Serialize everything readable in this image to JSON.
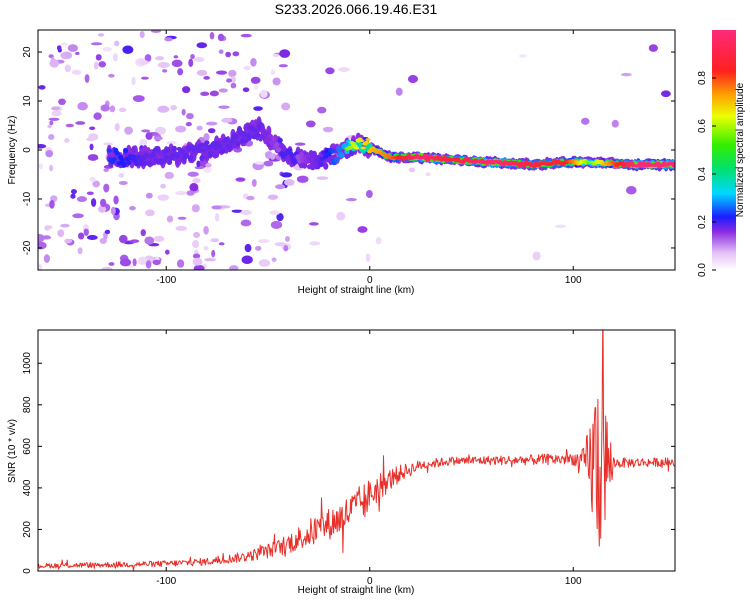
{
  "title": "S233.2026.066.19.46.E31",
  "chart_data": [
    {
      "type": "heatmap",
      "xlabel": "Height of straight line (km)",
      "ylabel": "Frequency (Hz)",
      "xlim": [
        -163,
        150
      ],
      "ylim": [
        -24.5,
        24.5
      ],
      "xticks": [
        -100,
        0,
        100
      ],
      "xtick_labels": [
        "-100",
        "0",
        "100"
      ],
      "yticks": [
        -20,
        -10,
        0,
        10,
        20
      ],
      "ytick_labels": [
        "-20",
        "-10",
        "0",
        "10",
        "20"
      ],
      "colorbar": {
        "label": "Normalized spectral amplitude",
        "range": [
          0,
          1
        ],
        "ticks": [
          0,
          0.2,
          0.4,
          0.6,
          0.8
        ],
        "tick_labels": [
          "0.0",
          "0.2",
          "0.4",
          "0.6",
          "0.8"
        ]
      },
      "ridge": [
        {
          "x": -130,
          "y": -1.5,
          "a": 0.4
        },
        {
          "x": -110,
          "y": -1.5,
          "a": 0.3
        },
        {
          "x": -90,
          "y": -1.0,
          "a": 0.3
        },
        {
          "x": -75,
          "y": 0.5,
          "a": 0.3
        },
        {
          "x": -55,
          "y": 4.5,
          "a": 0.3
        },
        {
          "x": -40,
          "y": -1.0,
          "a": 0.2
        },
        {
          "x": -25,
          "y": -2.5,
          "a": 0.3
        },
        {
          "x": -5,
          "y": 1.5,
          "a": 0.6
        },
        {
          "x": 10,
          "y": -1.5,
          "a": 0.7
        },
        {
          "x": 25,
          "y": -1.5,
          "a": 0.9
        },
        {
          "x": 40,
          "y": -2.0,
          "a": 0.8
        },
        {
          "x": 60,
          "y": -2.5,
          "a": 0.9
        },
        {
          "x": 80,
          "y": -3.0,
          "a": 0.8
        },
        {
          "x": 95,
          "y": -2.5,
          "a": 0.8
        },
        {
          "x": 108,
          "y": -2.5,
          "a": 0.5
        },
        {
          "x": 130,
          "y": -3.0,
          "a": 0.9
        },
        {
          "x": 150,
          "y": -3.0,
          "a": 0.9
        }
      ]
    },
    {
      "type": "line",
      "xlabel": "Height of straight line (km)",
      "ylabel": "SNR (10 * v/v)",
      "xlim": [
        -163,
        150
      ],
      "ylim": [
        0,
        1160
      ],
      "xticks": [
        -100,
        0,
        100
      ],
      "xtick_labels": [
        "-100",
        "0",
        "100"
      ],
      "yticks": [
        0,
        200,
        400,
        600,
        800,
        1000
      ],
      "ytick_labels": [
        "0",
        "200",
        "400",
        "600",
        "800",
        "1000"
      ],
      "color": "#e8302a",
      "envelope": [
        {
          "x": -163,
          "y": 25,
          "n": 12
        },
        {
          "x": -100,
          "y": 35,
          "n": 15
        },
        {
          "x": -80,
          "y": 45,
          "n": 18
        },
        {
          "x": -60,
          "y": 70,
          "n": 25
        },
        {
          "x": -45,
          "y": 110,
          "n": 40
        },
        {
          "x": -30,
          "y": 180,
          "n": 70
        },
        {
          "x": -15,
          "y": 250,
          "n": 80
        },
        {
          "x": -5,
          "y": 320,
          "n": 90
        },
        {
          "x": 5,
          "y": 410,
          "n": 70
        },
        {
          "x": 15,
          "y": 470,
          "n": 40
        },
        {
          "x": 25,
          "y": 510,
          "n": 25
        },
        {
          "x": 40,
          "y": 530,
          "n": 20
        },
        {
          "x": 80,
          "y": 535,
          "n": 25
        },
        {
          "x": 100,
          "y": 540,
          "n": 30
        },
        {
          "x": 105,
          "y": 530,
          "n": 60
        },
        {
          "x": 108,
          "y": 520,
          "n": 200
        },
        {
          "x": 112,
          "y": 520,
          "n": 500
        },
        {
          "x": 116,
          "y": 520,
          "n": 300
        },
        {
          "x": 120,
          "y": 520,
          "n": 25
        },
        {
          "x": 150,
          "y": 525,
          "n": 20
        }
      ]
    }
  ]
}
